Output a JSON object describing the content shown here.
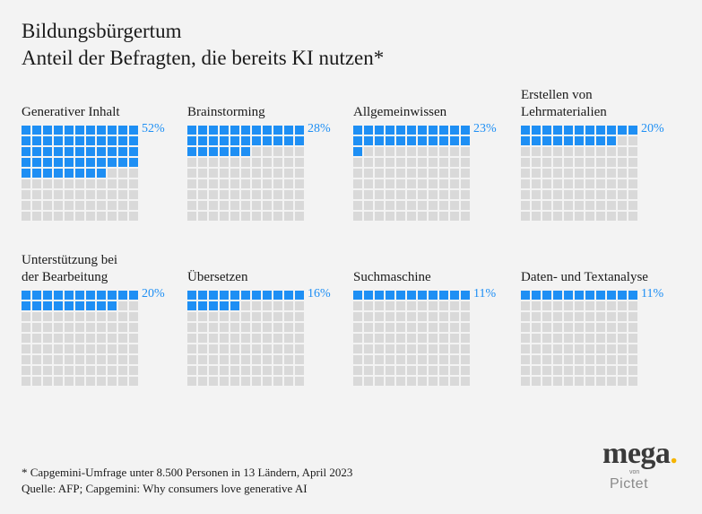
{
  "title": {
    "line1": "Bildungsbürgertum",
    "line2": "Anteil der Befragten, die bereits KI nutzen*"
  },
  "colors": {
    "filled": "#1e8ff4",
    "empty": "#d9d9d9",
    "background": "#f3f3f3"
  },
  "chart_data": {
    "type": "waffle",
    "title": "Anteil der Befragten, die bereits KI nutzen*",
    "grid": {
      "columns": 11,
      "rows": 9,
      "total_cells": 99
    },
    "unit": "%",
    "categories": [
      "Generativer Inhalt",
      "Brainstorming",
      "Allgemeinwissen",
      "Erstellen von Lehrmaterialien",
      "Unterstützung bei der Bearbeitung",
      "Übersetzen",
      "Suchmaschine",
      "Daten- und Textanalyse"
    ],
    "values": [
      52,
      28,
      23,
      20,
      20,
      16,
      11,
      11
    ],
    "panels": [
      {
        "label_lines": [
          "Generativer Inhalt"
        ],
        "value": 52,
        "value_label": "52%"
      },
      {
        "label_lines": [
          "Brainstorming"
        ],
        "value": 28,
        "value_label": "28%"
      },
      {
        "label_lines": [
          "Allgemeinwissen"
        ],
        "value": 23,
        "value_label": "23%"
      },
      {
        "label_lines": [
          "Erstellen von",
          "Lehrmaterialien"
        ],
        "value": 20,
        "value_label": "20%"
      },
      {
        "label_lines": [
          "Unterstützung bei",
          "der Bearbeitung"
        ],
        "value": 20,
        "value_label": "20%"
      },
      {
        "label_lines": [
          "Übersetzen"
        ],
        "value": 16,
        "value_label": "16%"
      },
      {
        "label_lines": [
          "Suchmaschine"
        ],
        "value": 11,
        "value_label": "11%"
      },
      {
        "label_lines": [
          "Daten- und Textanalyse"
        ],
        "value": 11,
        "value_label": "11%"
      }
    ]
  },
  "footnote": {
    "line1": "* Capgemini-Umfrage unter 8.500 Personen in 13 Ländern, April 2023",
    "line2": "Quelle: AFP; Capgemini: Why consumers love generative AI"
  },
  "logo": {
    "word": "mega",
    "dot": ".",
    "von": "von",
    "brand": "Pictet"
  }
}
